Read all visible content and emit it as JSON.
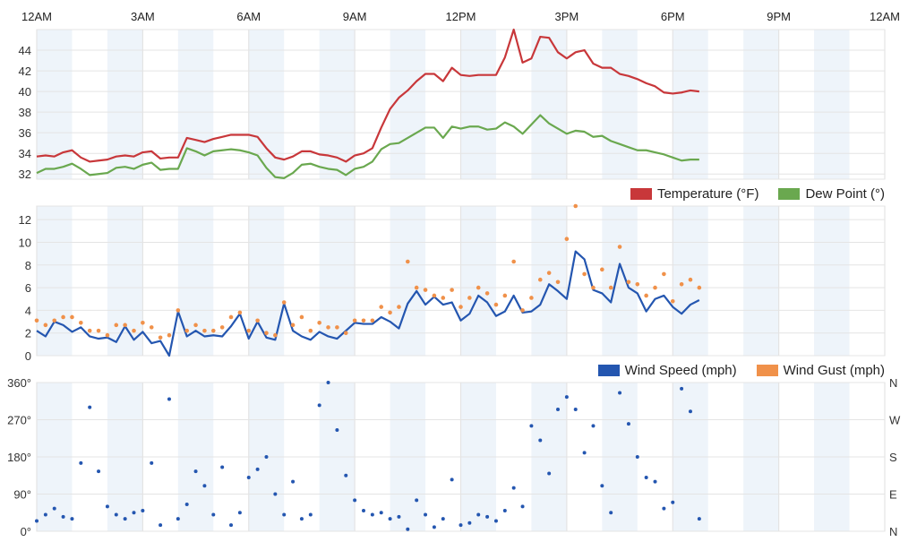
{
  "time_ticks": [
    "12AM",
    "3AM",
    "6AM",
    "9AM",
    "12PM",
    "3PM",
    "6PM",
    "9PM",
    "12AM"
  ],
  "colors": {
    "temperature": "#c8373a",
    "dew_point": "#6aa84f",
    "wind_speed": "#2456b0",
    "wind_gust": "#f0914a",
    "band": "#eef4fa",
    "grid": "#e4e4e4"
  },
  "chart_data": [
    {
      "type": "line",
      "ylim": [
        31.5,
        46
      ],
      "yticks": [
        "32",
        "34",
        "36",
        "38",
        "40",
        "42",
        "44"
      ],
      "grid": true,
      "legend": "bottom-right",
      "x": [
        "00:00",
        "00:15",
        "00:30",
        "00:45",
        "01:00",
        "01:15",
        "01:30",
        "01:45",
        "02:00",
        "02:15",
        "02:30",
        "02:45",
        "03:00",
        "03:15",
        "03:30",
        "03:45",
        "04:00",
        "04:15",
        "04:30",
        "04:45",
        "05:00",
        "05:15",
        "05:30",
        "05:45",
        "06:00",
        "06:15",
        "06:30",
        "06:45",
        "07:00",
        "07:15",
        "07:30",
        "07:45",
        "08:00",
        "08:15",
        "08:30",
        "08:45",
        "09:00",
        "09:15",
        "09:30",
        "09:45",
        "10:00",
        "10:15",
        "10:30",
        "10:45",
        "11:00",
        "11:15",
        "11:30",
        "11:45",
        "12:00",
        "12:15",
        "12:30",
        "12:45",
        "13:00",
        "13:15",
        "13:30",
        "13:45",
        "14:00",
        "14:15",
        "14:30",
        "14:45",
        "15:00",
        "15:15",
        "15:30",
        "15:45",
        "16:00",
        "16:15",
        "16:30",
        "16:45",
        "17:00",
        "17:15",
        "17:30",
        "17:45",
        "18:00",
        "18:15",
        "18:30",
        "18:45"
      ],
      "series": [
        {
          "name": "Temperature (°F)",
          "values": [
            33.7,
            33.8,
            33.7,
            34.1,
            34.3,
            33.6,
            33.2,
            33.3,
            33.4,
            33.7,
            33.8,
            33.7,
            34.1,
            34.2,
            33.5,
            33.6,
            33.6,
            35.5,
            35.3,
            35.1,
            35.4,
            35.6,
            35.8,
            35.8,
            35.8,
            35.6,
            34.5,
            33.6,
            33.4,
            33.7,
            34.2,
            34.2,
            33.9,
            33.8,
            33.6,
            33.2,
            33.8,
            34.0,
            34.5,
            36.5,
            38.3,
            39.4,
            40.1,
            41.0,
            41.7,
            41.7,
            41.0,
            42.3,
            41.6,
            41.5,
            41.6,
            41.6,
            41.6,
            43.3,
            46.0,
            42.8,
            43.2,
            45.3,
            45.2,
            43.8,
            43.2,
            43.8,
            44.0,
            42.7,
            42.3,
            42.3,
            41.7,
            41.5,
            41.2,
            40.8,
            40.5,
            39.9,
            39.8,
            39.9,
            40.1,
            40.0
          ]
        },
        {
          "name": "Dew Point (°)",
          "values": [
            32.1,
            32.5,
            32.5,
            32.7,
            33.0,
            32.5,
            31.9,
            32.0,
            32.1,
            32.6,
            32.7,
            32.5,
            32.9,
            33.1,
            32.4,
            32.5,
            32.5,
            34.5,
            34.2,
            33.8,
            34.2,
            34.3,
            34.4,
            34.3,
            34.1,
            33.8,
            32.6,
            31.7,
            31.6,
            32.1,
            32.9,
            33.0,
            32.7,
            32.5,
            32.4,
            31.9,
            32.5,
            32.7,
            33.2,
            34.4,
            34.9,
            35.0,
            35.5,
            36.0,
            36.5,
            36.5,
            35.5,
            36.6,
            36.4,
            36.6,
            36.6,
            36.3,
            36.4,
            37.0,
            36.6,
            35.9,
            36.8,
            37.7,
            36.9,
            36.4,
            35.9,
            36.2,
            36.1,
            35.6,
            35.7,
            35.2,
            34.9,
            34.6,
            34.3,
            34.3,
            34.1,
            33.9,
            33.6,
            33.3,
            33.4,
            33.4
          ]
        }
      ]
    },
    {
      "type": "line",
      "ylim": [
        0,
        13.2
      ],
      "yticks": [
        "0",
        "2",
        "4",
        "6",
        "8",
        "10",
        "12"
      ],
      "grid": true,
      "legend": "bottom-right",
      "x": [
        "00:00",
        "00:15",
        "00:30",
        "00:45",
        "01:00",
        "01:15",
        "01:30",
        "01:45",
        "02:00",
        "02:15",
        "02:30",
        "02:45",
        "03:00",
        "03:15",
        "03:30",
        "03:45",
        "04:00",
        "04:15",
        "04:30",
        "04:45",
        "05:00",
        "05:15",
        "05:30",
        "05:45",
        "06:00",
        "06:15",
        "06:30",
        "06:45",
        "07:00",
        "07:15",
        "07:30",
        "07:45",
        "08:00",
        "08:15",
        "08:30",
        "08:45",
        "09:00",
        "09:15",
        "09:30",
        "09:45",
        "10:00",
        "10:15",
        "10:30",
        "10:45",
        "11:00",
        "11:15",
        "11:30",
        "11:45",
        "12:00",
        "12:15",
        "12:30",
        "12:45",
        "13:00",
        "13:15",
        "13:30",
        "13:45",
        "14:00",
        "14:15",
        "14:30",
        "14:45",
        "15:00",
        "15:15",
        "15:30",
        "15:45",
        "16:00",
        "16:15",
        "16:30",
        "16:45",
        "17:00",
        "17:15",
        "17:30",
        "17:45",
        "18:00",
        "18:15",
        "18:30",
        "18:45"
      ],
      "series": [
        {
          "name": "Wind Speed (mph)",
          "style": "line",
          "values": [
            2.2,
            1.7,
            3.0,
            2.7,
            2.1,
            2.5,
            1.7,
            1.5,
            1.6,
            1.2,
            2.6,
            1.4,
            2.1,
            1.1,
            1.3,
            0.0,
            3.9,
            1.7,
            2.2,
            1.7,
            1.8,
            1.7,
            2.6,
            3.7,
            1.5,
            3.0,
            1.6,
            1.4,
            4.6,
            2.2,
            1.7,
            1.4,
            2.1,
            1.7,
            1.5,
            2.2,
            2.9,
            2.8,
            2.8,
            3.4,
            3.0,
            2.4,
            4.6,
            5.7,
            4.5,
            5.2,
            4.5,
            4.7,
            3.1,
            3.7,
            5.3,
            4.7,
            3.5,
            3.9,
            5.3,
            3.8,
            3.9,
            4.5,
            6.3,
            5.7,
            5.0,
            9.2,
            8.5,
            5.8,
            5.5,
            4.7,
            8.1,
            6.0,
            5.5,
            3.9,
            5.0,
            5.3,
            4.3,
            3.7,
            4.5,
            4.9
          ]
        },
        {
          "name": "Wind Gust (mph)",
          "style": "points",
          "values": [
            3.1,
            2.7,
            3.1,
            3.4,
            3.4,
            2.9,
            2.2,
            2.2,
            1.8,
            2.7,
            2.7,
            2.2,
            2.9,
            2.5,
            1.6,
            1.8,
            4.0,
            2.2,
            2.7,
            2.2,
            2.2,
            2.5,
            3.4,
            3.8,
            2.2,
            3.1,
            2.0,
            1.8,
            4.7,
            2.7,
            3.4,
            2.2,
            2.9,
            2.5,
            2.5,
            2.0,
            3.1,
            3.1,
            3.1,
            4.3,
            3.8,
            4.3,
            8.3,
            6.0,
            5.8,
            5.3,
            5.1,
            5.8,
            4.3,
            5.1,
            6.0,
            5.5,
            4.5,
            5.3,
            8.3,
            4.0,
            5.1,
            6.7,
            7.3,
            6.5,
            10.3,
            13.2,
            7.2,
            6.0,
            7.6,
            6.0,
            9.6,
            6.5,
            6.3,
            5.3,
            6.0,
            7.2,
            4.8,
            6.3,
            6.7,
            6.0
          ]
        }
      ]
    },
    {
      "type": "scatter",
      "ylim": [
        0,
        360
      ],
      "yticks": [
        "0°",
        "90°",
        "180°",
        "270°",
        "360°"
      ],
      "yticks_right": [
        "N",
        "E",
        "S",
        "W",
        "N"
      ],
      "grid": true,
      "x": [
        "00:00",
        "00:15",
        "00:30",
        "00:45",
        "01:00",
        "01:15",
        "01:30",
        "01:45",
        "02:00",
        "02:15",
        "02:30",
        "02:45",
        "03:00",
        "03:15",
        "03:30",
        "03:45",
        "04:00",
        "04:15",
        "04:30",
        "04:45",
        "05:00",
        "05:15",
        "05:30",
        "05:45",
        "06:00",
        "06:15",
        "06:30",
        "06:45",
        "07:00",
        "07:15",
        "07:30",
        "07:45",
        "08:00",
        "08:15",
        "08:30",
        "08:45",
        "09:00",
        "09:15",
        "09:30",
        "09:45",
        "10:00",
        "10:15",
        "10:30",
        "10:45",
        "11:00",
        "11:15",
        "11:30",
        "11:45",
        "12:00",
        "12:15",
        "12:30",
        "12:45",
        "13:00",
        "13:15",
        "13:30",
        "13:45",
        "14:00",
        "14:15",
        "14:30",
        "14:45",
        "15:00",
        "15:15",
        "15:30",
        "15:45",
        "16:00",
        "16:15",
        "16:30",
        "16:45",
        "17:00",
        "17:15",
        "17:30",
        "17:45",
        "18:00",
        "18:15",
        "18:30",
        "18:45"
      ],
      "series": [
        {
          "values": [
            25,
            40,
            55,
            35,
            30,
            165,
            300,
            145,
            60,
            40,
            30,
            45,
            50,
            165,
            15,
            320,
            30,
            65,
            145,
            110,
            40,
            155,
            15,
            45,
            130,
            150,
            180,
            90,
            40,
            120,
            30,
            40,
            305,
            360,
            245,
            135,
            75,
            50,
            40,
            45,
            30,
            35,
            5,
            75,
            40,
            10,
            30,
            125,
            15,
            20,
            40,
            35,
            25,
            50,
            105,
            60,
            255,
            220,
            140,
            295,
            325,
            295,
            190,
            255,
            110,
            45,
            335,
            260,
            180,
            130,
            120,
            55,
            70,
            345,
            290,
            30
          ]
        }
      ]
    }
  ]
}
